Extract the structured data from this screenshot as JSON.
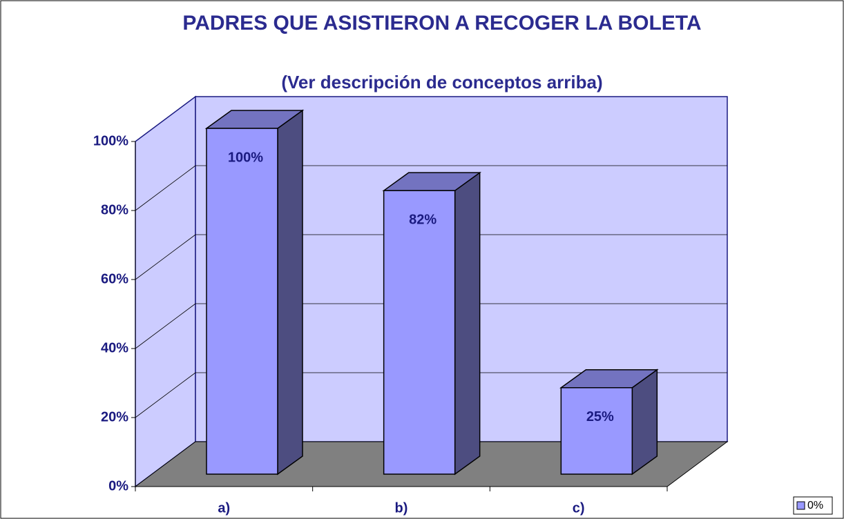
{
  "chart_data": {
    "type": "bar3d",
    "title": "PADRES QUE ASISTIERON A RECOGER LA BOLETA",
    "subtitle": "(Ver descripción de conceptos arriba)",
    "categories": [
      "a)",
      "b)",
      "c)"
    ],
    "series": [
      {
        "name": "0%",
        "color": "#9999ff",
        "values": [
          100,
          82,
          25
        ],
        "value_labels": [
          "100%",
          "82%",
          "25%"
        ]
      }
    ],
    "ylim": [
      0,
      100
    ],
    "yticks": [
      {
        "value": 0,
        "label": "0%"
      },
      {
        "value": 20,
        "label": "20%"
      },
      {
        "value": 40,
        "label": "40%"
      },
      {
        "value": 60,
        "label": "60%"
      },
      {
        "value": 80,
        "label": "80%"
      },
      {
        "value": 100,
        "label": "100%"
      }
    ],
    "grid": true,
    "legend": "bottom-right"
  }
}
